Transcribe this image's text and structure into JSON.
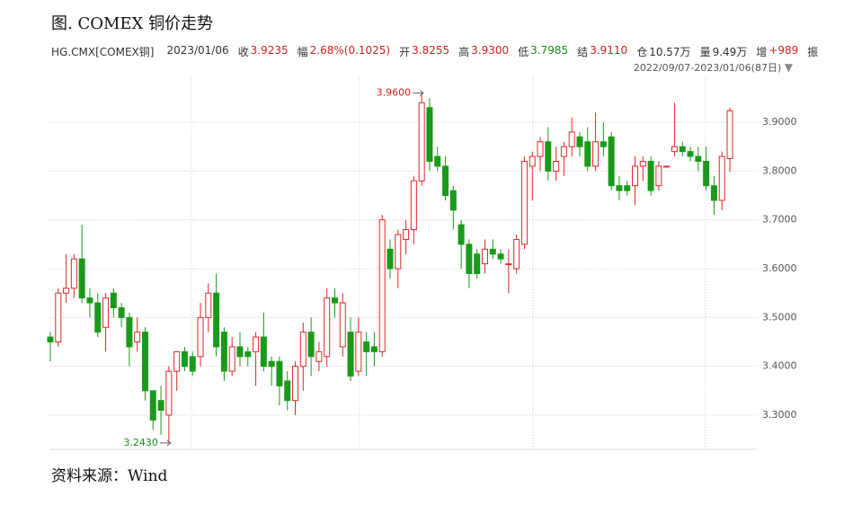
{
  "header": {
    "title": "图. COMEX 铜价走势",
    "symbol": "HG.CMX[COMEX铜]",
    "date": "2023/01/06",
    "fields": [
      {
        "label": "收",
        "value": "3.9235",
        "color": "#d02020"
      },
      {
        "label": "幅",
        "value": "2.68%(0.1025)",
        "color": "#d02020"
      },
      {
        "label": "开",
        "value": "3.8255",
        "color": "#d02020"
      },
      {
        "label": "高",
        "value": "3.9300",
        "color": "#d02020"
      },
      {
        "label": "低",
        "value": "3.7985",
        "color": "#1a8a1a"
      },
      {
        "label": "结",
        "value": "3.9110",
        "color": "#d02020"
      },
      {
        "label": "仓",
        "value": "10.57万",
        "color": "#333333"
      },
      {
        "label": "量",
        "value": "9.49万",
        "color": "#333333"
      },
      {
        "label": "增",
        "value": "+989",
        "color": "#d02020"
      }
    ],
    "truncated": "振",
    "range": "2022/09/07-2023/01/06(87日)"
  },
  "chart_data": {
    "type": "candlestick",
    "up_color": "#e02828",
    "down_color": "#1a9a1a",
    "ylim": [
      3.23,
      3.994
    ],
    "yticks": [
      {
        "value": 3.3,
        "label": "3.3000"
      },
      {
        "value": 3.4,
        "label": "3.4000"
      },
      {
        "value": 3.5,
        "label": "3.5000"
      },
      {
        "value": 3.6,
        "label": "3.6000"
      },
      {
        "value": 3.7,
        "label": "3.7000"
      },
      {
        "value": 3.8,
        "label": "3.8000"
      },
      {
        "value": 3.9,
        "label": "3.9000"
      }
    ],
    "grid": true,
    "open": [
      3.46,
      3.45,
      3.55,
      3.56,
      3.62,
      3.54,
      3.53,
      3.48,
      3.55,
      3.52,
      3.5,
      3.45,
      3.47,
      3.35,
      3.33,
      3.3,
      3.39,
      3.43,
      3.42,
      3.42,
      3.5,
      3.55,
      3.47,
      3.39,
      3.44,
      3.43,
      3.43,
      3.46,
      3.41,
      3.41,
      3.37,
      3.33,
      3.4,
      3.47,
      3.41,
      3.42,
      3.54,
      3.44,
      3.47,
      3.39,
      3.45,
      3.44,
      3.43,
      3.64,
      3.6,
      3.66,
      3.68,
      3.78,
      3.93,
      3.83,
      3.81,
      3.76,
      3.69,
      3.65,
      3.63,
      3.61,
      3.64,
      3.63,
      3.61,
      3.6,
      3.65,
      3.81,
      3.83,
      3.86,
      3.8,
      3.83,
      3.85,
      3.87,
      3.86,
      3.81,
      3.86,
      3.87,
      3.77,
      3.77,
      3.77,
      3.81,
      3.82,
      3.77,
      3.81,
      3.84,
      3.85,
      3.84,
      3.83,
      3.82,
      3.77,
      3.74,
      3.8255
    ],
    "high": [
      3.47,
      3.56,
      3.63,
      3.63,
      3.69,
      3.56,
      3.55,
      3.55,
      3.56,
      3.53,
      3.51,
      3.5,
      3.48,
      3.35,
      3.36,
      3.4,
      3.43,
      3.44,
      3.43,
      3.53,
      3.57,
      3.59,
      3.48,
      3.46,
      3.47,
      3.44,
      3.47,
      3.51,
      3.42,
      3.42,
      3.39,
      3.41,
      3.49,
      3.5,
      3.45,
      3.56,
      3.56,
      3.55,
      3.5,
      3.5,
      3.47,
      3.47,
      3.71,
      3.66,
      3.68,
      3.7,
      3.79,
      3.96,
      3.95,
      3.85,
      3.83,
      3.77,
      3.7,
      3.66,
      3.64,
      3.66,
      3.66,
      3.64,
      3.64,
      3.67,
      3.83,
      3.84,
      3.87,
      3.89,
      3.85,
      3.86,
      3.91,
      3.88,
      3.89,
      3.92,
      3.9,
      3.88,
      3.79,
      3.78,
      3.83,
      3.83,
      3.83,
      3.82,
      3.81,
      3.94,
      3.86,
      3.85,
      3.85,
      3.85,
      3.79,
      3.84,
      3.93
    ],
    "low": [
      3.41,
      3.44,
      3.53,
      3.54,
      3.53,
      3.5,
      3.46,
      3.43,
      3.5,
      3.48,
      3.4,
      3.43,
      3.33,
      3.27,
      3.26,
      3.243,
      3.35,
      3.39,
      3.38,
      3.4,
      3.47,
      3.42,
      3.37,
      3.38,
      3.4,
      3.4,
      3.36,
      3.39,
      3.36,
      3.32,
      3.31,
      3.3,
      3.35,
      3.38,
      3.39,
      3.4,
      3.5,
      3.42,
      3.37,
      3.38,
      3.38,
      3.4,
      3.42,
      3.58,
      3.56,
      3.63,
      3.65,
      3.77,
      3.8,
      3.8,
      3.74,
      3.68,
      3.6,
      3.56,
      3.58,
      3.59,
      3.62,
      3.61,
      3.55,
      3.59,
      3.64,
      3.74,
      3.8,
      3.78,
      3.78,
      3.79,
      3.83,
      3.83,
      3.8,
      3.8,
      3.83,
      3.76,
      3.74,
      3.75,
      3.73,
      3.78,
      3.75,
      3.76,
      3.81,
      3.83,
      3.83,
      3.82,
      3.8,
      3.76,
      3.71,
      3.72,
      3.7985
    ],
    "close": [
      3.45,
      3.55,
      3.56,
      3.62,
      3.54,
      3.53,
      3.47,
      3.54,
      3.52,
      3.5,
      3.44,
      3.47,
      3.35,
      3.29,
      3.31,
      3.39,
      3.43,
      3.4,
      3.39,
      3.5,
      3.55,
      3.44,
      3.39,
      3.44,
      3.42,
      3.42,
      3.46,
      3.4,
      3.4,
      3.36,
      3.33,
      3.4,
      3.47,
      3.42,
      3.43,
      3.54,
      3.53,
      3.53,
      3.38,
      3.47,
      3.43,
      3.43,
      3.7,
      3.6,
      3.67,
      3.68,
      3.78,
      3.94,
      3.82,
      3.81,
      3.75,
      3.72,
      3.65,
      3.59,
      3.59,
      3.64,
      3.63,
      3.62,
      3.61,
      3.66,
      3.82,
      3.83,
      3.86,
      3.8,
      3.82,
      3.85,
      3.88,
      3.85,
      3.81,
      3.86,
      3.85,
      3.77,
      3.76,
      3.76,
      3.81,
      3.82,
      3.76,
      3.81,
      3.81,
      3.85,
      3.84,
      3.83,
      3.82,
      3.77,
      3.74,
      3.83,
      3.9235
    ],
    "annotations": [
      {
        "value": 3.96,
        "label": "3.9600",
        "color": "#d02020"
      },
      {
        "value": 3.243,
        "label": "3.2430",
        "color": "#1a8a1a"
      }
    ]
  },
  "source": "资料来源：Wind"
}
